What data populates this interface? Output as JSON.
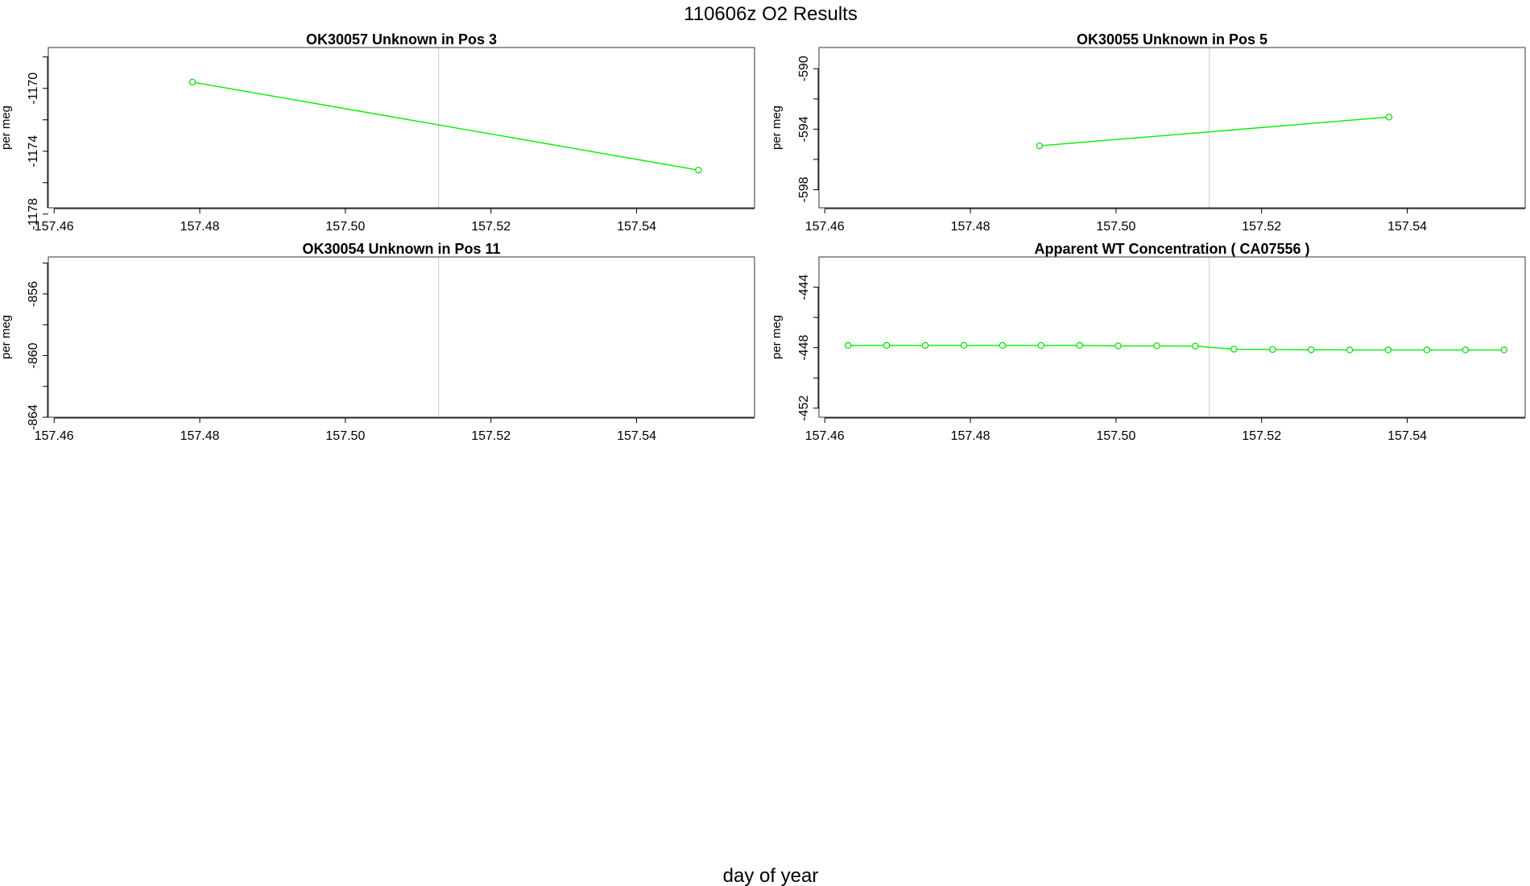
{
  "title": "110606z  O2 Results",
  "xlabel": "day of year",
  "colors": {
    "series": "#00ee00",
    "marker_line": "#00dd00",
    "vline": "#d3d3d3",
    "axis": "#000000"
  },
  "chart_data": [
    {
      "type": "line",
      "title": "OK30057    Unknown in Pos 3",
      "ylabel": "per meg",
      "xlim": [
        157.4592,
        157.5562
      ],
      "ylim": [
        -1177.6,
        -1167.4
      ],
      "xticks": [
        "157.46",
        "157.48",
        "157.50",
        "157.52",
        "157.54"
      ],
      "xtick_values": [
        157.46,
        157.48,
        157.5,
        157.52,
        157.54
      ],
      "yticks": [
        "-1170",
        "-1174",
        "-1178"
      ],
      "ytick_values": [
        -1170,
        -1174,
        -1178
      ],
      "yminor_ticks": [
        -1168,
        -1172,
        -1176
      ],
      "vline_x": 157.5128,
      "grid": false,
      "series": [
        {
          "x": [
            157.479,
            157.5485
          ],
          "y": [
            -1169.6,
            -1175.2
          ]
        }
      ]
    },
    {
      "type": "line",
      "title": "OK30055    Unknown in Pos 5",
      "ylabel": "per meg",
      "xlim": [
        157.4592,
        157.5562
      ],
      "ylim": [
        -599.2,
        -588.6
      ],
      "xticks": [
        "157.46",
        "157.48",
        "157.50",
        "157.52",
        "157.54"
      ],
      "xtick_values": [
        157.46,
        157.48,
        157.5,
        157.52,
        157.54
      ],
      "yticks": [
        "-590",
        "-594",
        "-598"
      ],
      "ytick_values": [
        -590,
        -594,
        -598
      ],
      "yminor_ticks": [
        -592,
        -596
      ],
      "vline_x": 157.5128,
      "grid": false,
      "series": [
        {
          "x": [
            157.4895,
            157.5375
          ],
          "y": [
            -595.1,
            -593.2
          ]
        }
      ]
    },
    {
      "type": "line",
      "title": "OK30054    Unknown in Pos 11",
      "ylabel": "per meg",
      "xlim": [
        157.4592,
        157.5562
      ],
      "ylim": [
        -864.0,
        -853.6
      ],
      "xticks": [
        "157.46",
        "157.48",
        "157.50",
        "157.52",
        "157.54"
      ],
      "xtick_values": [
        157.46,
        157.48,
        157.5,
        157.52,
        157.54
      ],
      "yticks": [
        "-856",
        "-860",
        "-864"
      ],
      "ytick_values": [
        -856,
        -860,
        -864
      ],
      "yminor_ticks": [
        -854,
        -858,
        -862
      ],
      "vline_x": 157.5128,
      "grid": false,
      "series": []
    },
    {
      "type": "line",
      "title": "Apparent WT Concentration ( CA07556 )",
      "ylabel": "per meg",
      "xlim": [
        157.4592,
        157.5562
      ],
      "ylim": [
        -452.6,
        -442.0
      ],
      "xticks": [
        "157.46",
        "157.48",
        "157.50",
        "157.52",
        "157.54"
      ],
      "xtick_values": [
        157.46,
        157.48,
        157.5,
        157.52,
        157.54
      ],
      "yticks": [
        "-444",
        "-448",
        "-452"
      ],
      "ytick_values": [
        -444,
        -448,
        -452
      ],
      "yminor_ticks": [
        -446,
        -450
      ],
      "vline_x": 157.5128,
      "grid": false,
      "series": [
        {
          "x": [
            157.4632,
            157.4685,
            157.4738,
            157.4791,
            157.4844,
            157.4897,
            157.495,
            157.5003,
            157.5056,
            157.5109,
            157.5162,
            157.5215,
            157.5268,
            157.5321,
            157.5374,
            157.5427,
            157.548,
            157.5533
          ],
          "y": [
            -447.85,
            -447.85,
            -447.85,
            -447.85,
            -447.85,
            -447.85,
            -447.85,
            -447.88,
            -447.88,
            -447.9,
            -448.1,
            -448.12,
            -448.14,
            -448.15,
            -448.15,
            -448.15,
            -448.15,
            -448.15
          ]
        }
      ]
    }
  ]
}
